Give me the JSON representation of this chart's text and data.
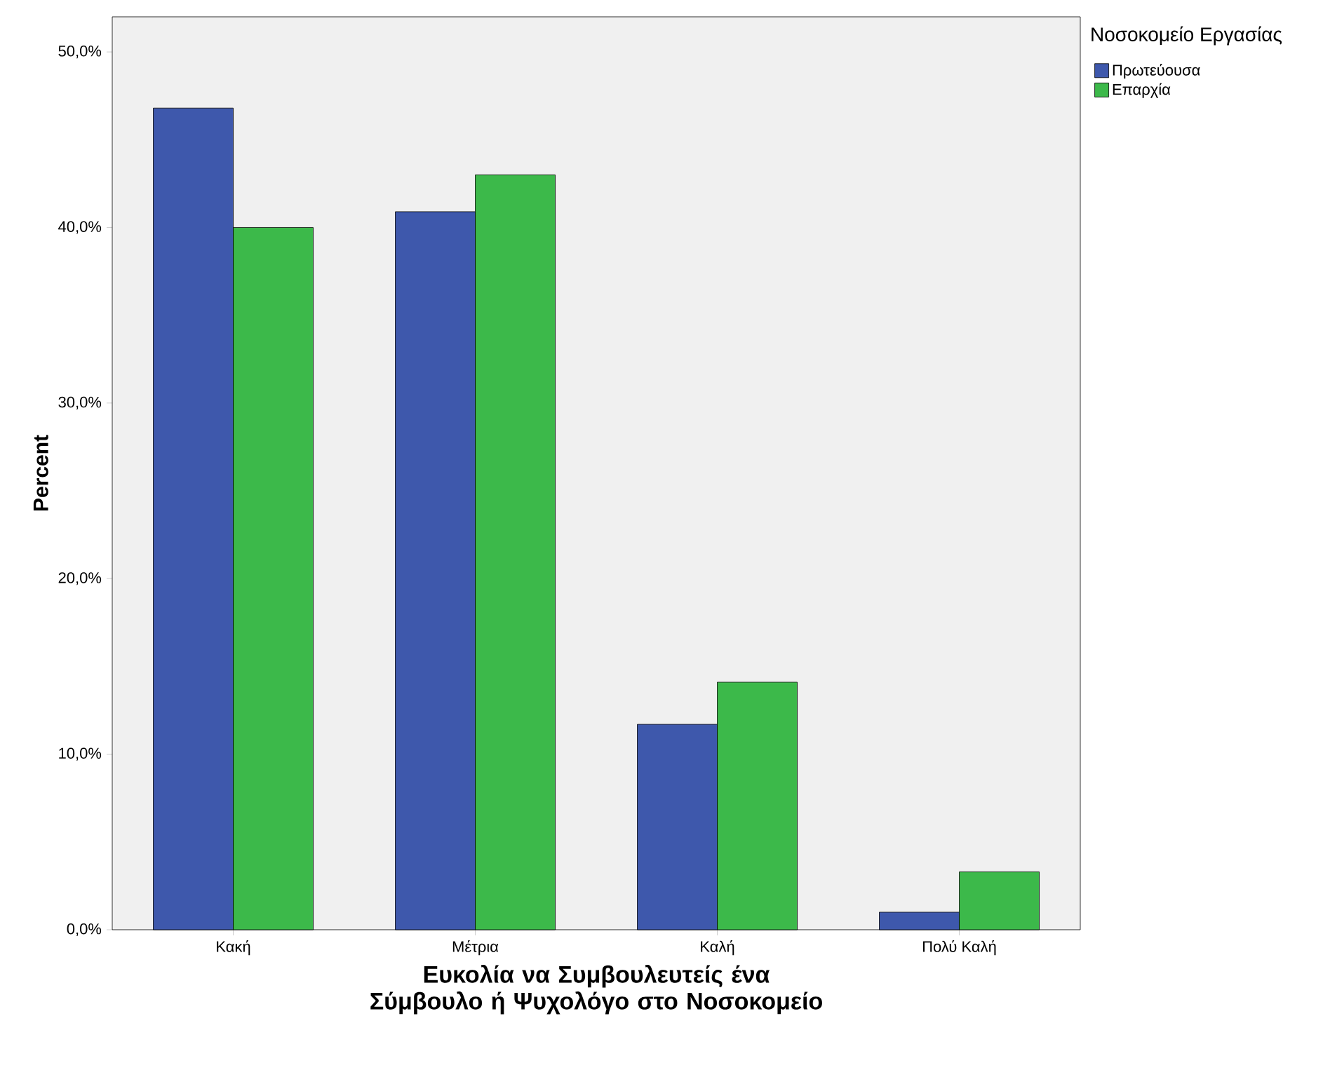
{
  "chart_data": {
    "type": "bar",
    "xlabel": "Ευκολία να Συμβουλευτείς ένα Σύμβουλο ή Ψυχολόγο στο Νοσοκομείο",
    "ylabel": "Percent",
    "legend_title": "Νοσοκομείο Εργασίας",
    "legend": "top right",
    "grid": false,
    "categories": [
      "Κακή",
      "Μέτρια",
      "Καλή",
      "Πολύ Καλή"
    ],
    "series": [
      {
        "name": "Πρωτεύουσα",
        "color": "#3e58ac",
        "values": [
          46.8,
          40.9,
          11.7,
          1.0
        ]
      },
      {
        "name": "Επαρχία",
        "color": "#3cb94a",
        "values": [
          40.0,
          43.0,
          14.1,
          3.3
        ]
      }
    ],
    "ylim": [
      0,
      52
    ],
    "yticks": [
      {
        "value": 0,
        "label": "0,0%"
      },
      {
        "value": 10,
        "label": "10,0%"
      },
      {
        "value": 20,
        "label": "20,0%"
      },
      {
        "value": 30,
        "label": "30,0%"
      },
      {
        "value": 40,
        "label": "40,0%"
      },
      {
        "value": 50,
        "label": "50,0%"
      }
    ]
  }
}
